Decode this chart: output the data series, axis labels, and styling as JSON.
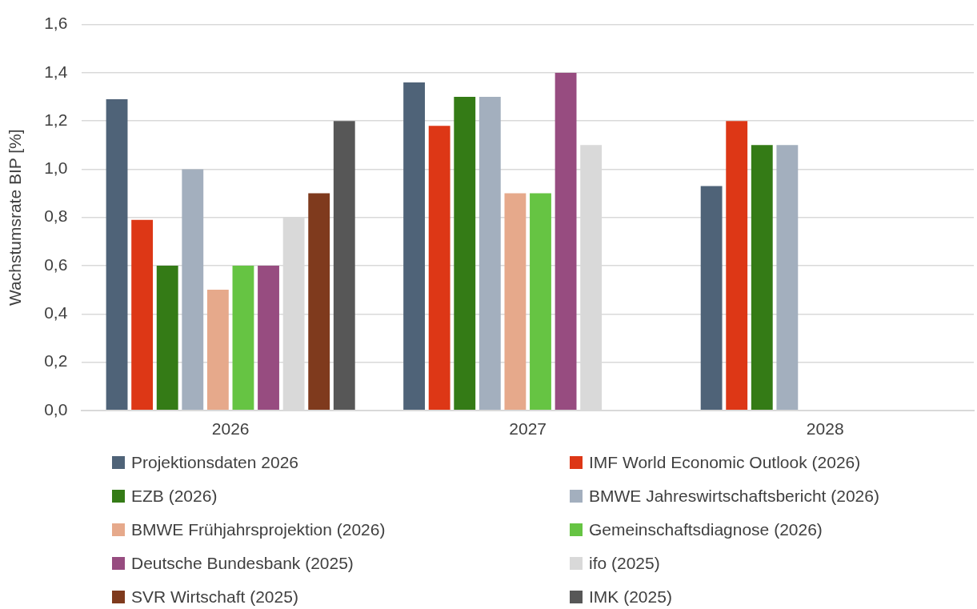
{
  "chart_data": {
    "type": "bar",
    "ylabel": "Wachstumsrate BIP [%]",
    "categories": [
      "2026",
      "2027",
      "2028"
    ],
    "series": [
      {
        "name": "Projektionsdaten 2026",
        "color": "#4f6378",
        "values": [
          1.29,
          1.36,
          0.93
        ]
      },
      {
        "name": "IMF World Economic Outlook (2026)",
        "color": "#dd3716",
        "values": [
          0.79,
          1.18,
          1.2
        ]
      },
      {
        "name": "EZB (2026)",
        "color": "#347b16",
        "values": [
          0.6,
          1.3,
          1.1
        ]
      },
      {
        "name": "BMWE Jahreswirtschaftsbericht (2026)",
        "color": "#a3afbe",
        "values": [
          1.0,
          1.3,
          1.1
        ]
      },
      {
        "name": "BMWE Frühjahrsprojektion (2026)",
        "color": "#e6a98b",
        "values": [
          0.5,
          0.9,
          null
        ]
      },
      {
        "name": "Gemeinschaftsdiagnose (2026)",
        "color": "#66c443",
        "values": [
          0.6,
          0.9,
          null
        ]
      },
      {
        "name": "Deutsche Bundesbank (2025)",
        "color": "#974c80",
        "values": [
          0.6,
          1.4,
          null
        ]
      },
      {
        "name": "ifo (2025)",
        "color": "#d9d9d9",
        "values": [
          0.8,
          1.1,
          null
        ]
      },
      {
        "name": "SVR Wirtschaft (2025)",
        "color": "#7f3a1d",
        "values": [
          0.9,
          null,
          null
        ]
      },
      {
        "name": "IMK (2025)",
        "color": "#575757",
        "values": [
          1.2,
          null,
          null
        ]
      }
    ],
    "ylim": [
      0,
      1.6
    ],
    "yticks": [
      {
        "value": 0,
        "label": "0,0"
      },
      {
        "value": 0.2,
        "label": "0,2"
      },
      {
        "value": 0.4,
        "label": "0,4"
      },
      {
        "value": 0.6,
        "label": "0,6"
      },
      {
        "value": 0.8,
        "label": "0,8"
      },
      {
        "value": 1,
        "label": "1,0"
      },
      {
        "value": 1.2,
        "label": "1,2"
      },
      {
        "value": 1.4,
        "label": "1,4"
      },
      {
        "value": 1.6,
        "label": "1,6"
      }
    ],
    "grid": "y",
    "legend": "bottom"
  }
}
